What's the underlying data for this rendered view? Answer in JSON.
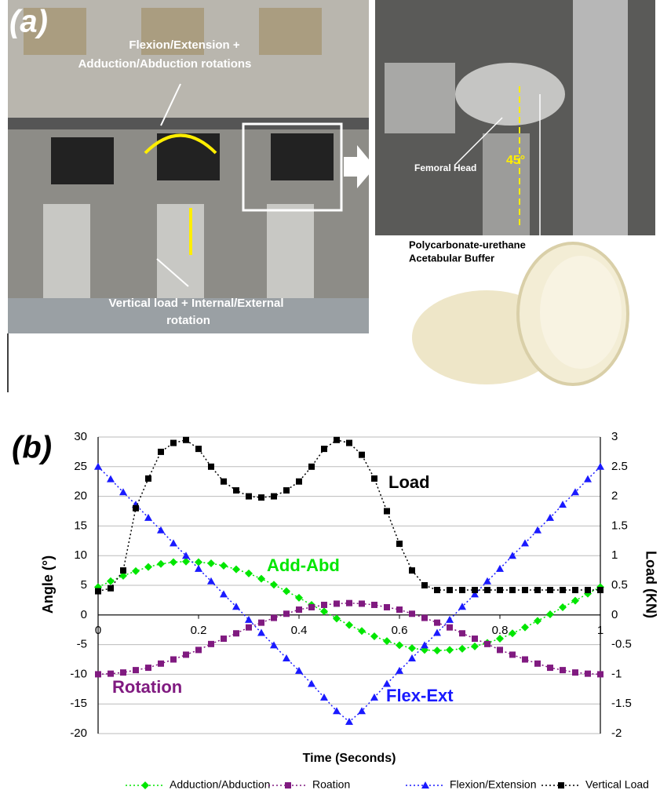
{
  "panel_a": {
    "label": "(a)",
    "rotation_label": [
      "Flexion/Extension +",
      "Adduction/Abduction rotations"
    ],
    "load_label": [
      "Vertical load + Internal/External",
      "rotation"
    ],
    "head_label": "Femoral Head",
    "angle_label": "45°",
    "buffer_label": [
      "Polycarbonate-urethane",
      "Acetabular Buffer"
    ]
  },
  "chart_data": {
    "type": "line",
    "panel_label": "(b)",
    "x_label": "Time (Seconds)",
    "y_label": "Angle (°)",
    "y2_label": "Load (KN)",
    "x": [
      0,
      0.025,
      0.05,
      0.075,
      0.1,
      0.125,
      0.15,
      0.175,
      0.2,
      0.225,
      0.25,
      0.275,
      0.3,
      0.325,
      0.35,
      0.375,
      0.4,
      0.425,
      0.45,
      0.475,
      0.5,
      0.525,
      0.55,
      0.575,
      0.6,
      0.625,
      0.65,
      0.675,
      0.7,
      0.725,
      0.75,
      0.775,
      0.8,
      0.825,
      0.85,
      0.875,
      0.9,
      0.925,
      0.95,
      0.975,
      1
    ],
    "series": [
      {
        "name": "Adduction/Abduction",
        "color": "#00e600",
        "marker": "diamond",
        "values": [
          4.7,
          5.7,
          6.6,
          7.4,
          8.1,
          8.6,
          8.9,
          9.0,
          8.9,
          8.7,
          8.3,
          7.7,
          7.0,
          6.1,
          5.1,
          4.0,
          2.9,
          1.7,
          0.6,
          -0.6,
          -1.7,
          -2.7,
          -3.6,
          -4.4,
          -5.1,
          -5.6,
          -5.9,
          -6.0,
          -5.9,
          -5.7,
          -5.3,
          -4.7,
          -4.0,
          -3.1,
          -2.1,
          -1.0,
          0.1,
          1.3,
          2.4,
          3.6,
          4.7
        ]
      },
      {
        "name": "Roation",
        "color": "#801a80",
        "marker": "square",
        "values": [
          -10,
          -9.9,
          -9.7,
          -9.3,
          -8.9,
          -8.2,
          -7.5,
          -6.7,
          -5.9,
          -4.9,
          -4,
          -3.1,
          -2.1,
          -1.3,
          -0.5,
          0.2,
          0.9,
          1.3,
          1.7,
          1.9,
          2,
          1.9,
          1.7,
          1.3,
          0.9,
          0.2,
          -0.5,
          -1.3,
          -2.1,
          -3.1,
          -4,
          -4.9,
          -5.9,
          -6.7,
          -7.5,
          -8.2,
          -8.9,
          -9.3,
          -9.7,
          -9.9,
          -10
        ]
      },
      {
        "name": "Flexion/Extension",
        "color": "#1a1aff",
        "marker": "triangle",
        "values": [
          25,
          22.9,
          20.7,
          18.6,
          16.4,
          14.3,
          12.1,
          10,
          7.8,
          5.7,
          3.5,
          1.4,
          -0.8,
          -3,
          -5.1,
          -7.3,
          -9.4,
          -11.6,
          -13.9,
          -16.2,
          -18,
          -16.2,
          -13.9,
          -11.6,
          -9.4,
          -7.3,
          -5.1,
          -3,
          -0.8,
          1.4,
          3.5,
          5.7,
          7.8,
          10,
          12.1,
          14.3,
          16.4,
          18.6,
          20.7,
          22.9,
          25
        ]
      },
      {
        "name": "Vertical Load",
        "color": "#000000",
        "marker": "square",
        "axis": "y2",
        "values": [
          0.4,
          0.45,
          0.75,
          1.8,
          2.3,
          2.75,
          2.9,
          2.95,
          2.8,
          2.5,
          2.25,
          2.1,
          2.0,
          1.98,
          2.0,
          2.1,
          2.25,
          2.5,
          2.8,
          2.95,
          2.9,
          2.7,
          2.3,
          1.75,
          1.2,
          0.75,
          0.5,
          0.42,
          0.42,
          0.42,
          0.42,
          0.42,
          0.42,
          0.42,
          0.42,
          0.42,
          0.42,
          0.42,
          0.42,
          0.42,
          0.42
        ]
      }
    ],
    "annotations": [
      {
        "text": "Load",
        "color": "#000000"
      },
      {
        "text": "Add-Abd",
        "color": "#00e600"
      },
      {
        "text": "Rotation",
        "color": "#801a80"
      },
      {
        "text": "Flex-Ext",
        "color": "#1a1aff"
      }
    ],
    "xlim": [
      0,
      1
    ],
    "xticks": [
      0,
      0.2,
      0.4,
      0.6,
      0.8,
      1
    ],
    "ylim": [
      -20,
      30
    ],
    "yticks": [
      -20,
      -15,
      -10,
      -5,
      0,
      5,
      10,
      15,
      20,
      25,
      30
    ],
    "y2lim": [
      -2,
      3
    ],
    "y2ticks": [
      -2,
      -1.5,
      -1,
      -0.5,
      0,
      0.5,
      1,
      1.5,
      2,
      2.5,
      3
    ],
    "grid": true
  }
}
